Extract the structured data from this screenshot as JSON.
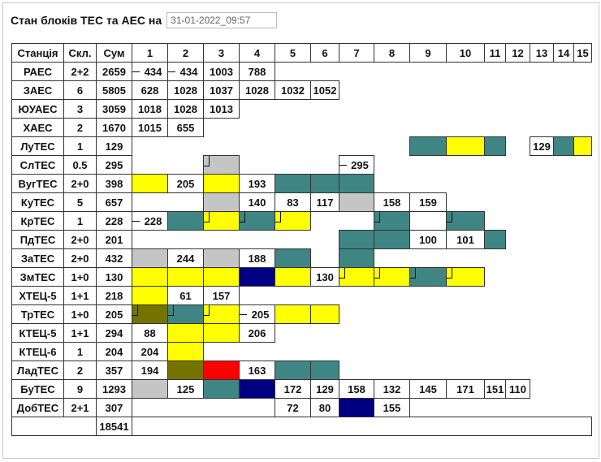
{
  "title": "Стан блоків ТЕС та АЕС на",
  "datetime": "31-01-2022_09:57",
  "headers": [
    "Станція",
    "Скл.",
    "Сум",
    "1",
    "2",
    "3",
    "4",
    "5",
    "6",
    "7",
    "8",
    "9",
    "10",
    "11",
    "12",
    "13",
    "14",
    "15"
  ],
  "rows": [
    {
      "station": "РАЕС",
      "skl": "2+2",
      "sum": "2659",
      "cells": [
        {
          "n": 1,
          "t": "434",
          "m": "dash"
        },
        {
          "n": 2,
          "t": "434",
          "m": "dash"
        },
        {
          "n": 3,
          "t": "1003"
        },
        {
          "n": 4,
          "t": "788"
        }
      ]
    },
    {
      "station": "ЗАЕС",
      "skl": "6",
      "sum": "5805",
      "cells": [
        {
          "n": 1,
          "t": "628"
        },
        {
          "n": 2,
          "t": "1028"
        },
        {
          "n": 3,
          "t": "1037"
        },
        {
          "n": 4,
          "t": "1028"
        },
        {
          "n": 5,
          "t": "1032"
        },
        {
          "n": 6,
          "t": "1052"
        }
      ]
    },
    {
      "station": "ЮУАЕС",
      "skl": "3",
      "sum": "3059",
      "cells": [
        {
          "n": 1,
          "t": "1018"
        },
        {
          "n": 2,
          "t": "1028"
        },
        {
          "n": 3,
          "t": "1013"
        }
      ]
    },
    {
      "station": "ХАЕС",
      "skl": "2",
      "sum": "1670",
      "cells": [
        {
          "n": 1,
          "t": "1015"
        },
        {
          "n": 2,
          "t": "655"
        }
      ]
    },
    {
      "station": "ЛуТЕС",
      "skl": "1",
      "sum": "129",
      "cells": [
        {
          "n": 9,
          "c": "g"
        },
        {
          "n": 10,
          "c": "y"
        },
        {
          "n": 11,
          "c": "g"
        },
        {
          "n": 13,
          "t": "129"
        },
        {
          "n": 14,
          "c": "g"
        },
        {
          "n": 15,
          "c": "y"
        }
      ]
    },
    {
      "station": "СлТЕС",
      "skl": "0.5",
      "sum": "295",
      "cells": [
        {
          "n": 3,
          "c": "s",
          "m": "mk"
        },
        {
          "n": 7,
          "t": "295",
          "m": "dash"
        }
      ]
    },
    {
      "station": "ВугТЕС",
      "skl": "2+0",
      "sum": "398",
      "cells": [
        {
          "n": 1,
          "c": "y"
        },
        {
          "n": 2,
          "t": "205"
        },
        {
          "n": 3,
          "c": "y"
        },
        {
          "n": 4,
          "t": "193"
        },
        {
          "n": 5,
          "c": "g"
        },
        {
          "n": 6,
          "c": "g"
        },
        {
          "n": 7,
          "c": "g"
        }
      ]
    },
    {
      "station": "КуТЕС",
      "skl": "5",
      "sum": "657",
      "cells": [
        {
          "n": 3,
          "c": "s"
        },
        {
          "n": 4,
          "t": "140"
        },
        {
          "n": 5,
          "t": "83"
        },
        {
          "n": 6,
          "t": "117"
        },
        {
          "n": 7,
          "c": "s"
        },
        {
          "n": 8,
          "t": "158"
        },
        {
          "n": 9,
          "t": "159"
        }
      ]
    },
    {
      "station": "КрТЕС",
      "skl": "1",
      "sum": "228",
      "cells": [
        {
          "n": 1,
          "t": "228",
          "m": "dash"
        },
        {
          "n": 2,
          "c": "g"
        },
        {
          "n": 3,
          "c": "y",
          "m": "mk"
        },
        {
          "n": 4,
          "c": "g",
          "m": "mk"
        },
        {
          "n": 5,
          "c": "y",
          "m": "mk"
        },
        {
          "n": 8,
          "c": "g",
          "m": "mk"
        },
        {
          "n": 10,
          "c": "g",
          "m": "mk"
        }
      ]
    },
    {
      "station": "ПдТЕС",
      "skl": "2+0",
      "sum": "201",
      "cells": [
        {
          "n": 7,
          "c": "g"
        },
        {
          "n": 8,
          "c": "g"
        },
        {
          "n": 9,
          "t": "100"
        },
        {
          "n": 10,
          "t": "101"
        },
        {
          "n": 11,
          "c": "g"
        }
      ]
    },
    {
      "station": "ЗаТЕС",
      "skl": "2+0",
      "sum": "432",
      "cells": [
        {
          "n": 1,
          "c": "s"
        },
        {
          "n": 2,
          "t": "244"
        },
        {
          "n": 3,
          "c": "s"
        },
        {
          "n": 4,
          "t": "188"
        },
        {
          "n": 5,
          "c": "g"
        },
        {
          "n": 7,
          "c": "g"
        }
      ]
    },
    {
      "station": "ЗмТЕС",
      "skl": "1+0",
      "sum": "130",
      "cells": [
        {
          "n": 1,
          "c": "y"
        },
        {
          "n": 2,
          "c": "y"
        },
        {
          "n": 3,
          "c": "y"
        },
        {
          "n": 4,
          "c": "b"
        },
        {
          "n": 5,
          "c": "y"
        },
        {
          "n": 6,
          "t": "130"
        },
        {
          "n": 7,
          "c": "y",
          "m": "mk"
        },
        {
          "n": 8,
          "c": "y",
          "m": "mk"
        },
        {
          "n": 9,
          "c": "g",
          "m": "mk"
        },
        {
          "n": 10,
          "c": "y",
          "m": "mk"
        }
      ]
    },
    {
      "station": "ХТЕЦ-5",
      "skl": "1+1",
      "sum": "218",
      "cells": [
        {
          "n": 1,
          "c": "y"
        },
        {
          "n": 2,
          "t": "61"
        },
        {
          "n": 3,
          "t": "157"
        }
      ]
    },
    {
      "station": "ТрТЕС",
      "skl": "1+0",
      "sum": "205",
      "cells": [
        {
          "n": 1,
          "c": "o",
          "m": "mk"
        },
        {
          "n": 2,
          "c": "g",
          "m": "mk"
        },
        {
          "n": 3,
          "c": "y",
          "m": "mk"
        },
        {
          "n": 4,
          "t": "205",
          "m": "dash"
        },
        {
          "n": 5,
          "c": "y"
        },
        {
          "n": 6,
          "c": "y"
        }
      ]
    },
    {
      "station": "КТЕЦ-5",
      "skl": "1+1",
      "sum": "294",
      "cells": [
        {
          "n": 1,
          "t": "88"
        },
        {
          "n": 2,
          "c": "y"
        },
        {
          "n": 3,
          "c": "y"
        },
        {
          "n": 4,
          "t": "206"
        }
      ]
    },
    {
      "station": "КТЕЦ-6",
      "skl": "1",
      "sum": "204",
      "cells": [
        {
          "n": 1,
          "t": "204"
        },
        {
          "n": 2,
          "c": "y"
        }
      ]
    },
    {
      "station": "ЛадТЕС",
      "skl": "2",
      "sum": "357",
      "cells": [
        {
          "n": 1,
          "t": "194"
        },
        {
          "n": 2,
          "c": "o"
        },
        {
          "n": 3,
          "c": "r"
        },
        {
          "n": 4,
          "t": "163"
        },
        {
          "n": 5,
          "c": "g"
        },
        {
          "n": 6,
          "c": "g"
        }
      ]
    },
    {
      "station": "БуТЕС",
      "skl": "9",
      "sum": "1293",
      "cells": [
        {
          "n": 1,
          "c": "s"
        },
        {
          "n": 2,
          "t": "125"
        },
        {
          "n": 3,
          "c": "g"
        },
        {
          "n": 4,
          "c": "b"
        },
        {
          "n": 5,
          "t": "172"
        },
        {
          "n": 6,
          "t": "129"
        },
        {
          "n": 7,
          "t": "158"
        },
        {
          "n": 8,
          "t": "132"
        },
        {
          "n": 9,
          "t": "145"
        },
        {
          "n": 10,
          "t": "171"
        },
        {
          "n": 11,
          "t": "151"
        },
        {
          "n": 12,
          "t": "110"
        }
      ]
    },
    {
      "station": "ДобТЕС",
      "skl": "2+1",
      "sum": "307",
      "cells": [
        {
          "n": 5,
          "t": "72"
        },
        {
          "n": 6,
          "t": "80"
        },
        {
          "n": 7,
          "c": "b"
        },
        {
          "n": 8,
          "t": "155"
        }
      ]
    }
  ],
  "total": "18541"
}
